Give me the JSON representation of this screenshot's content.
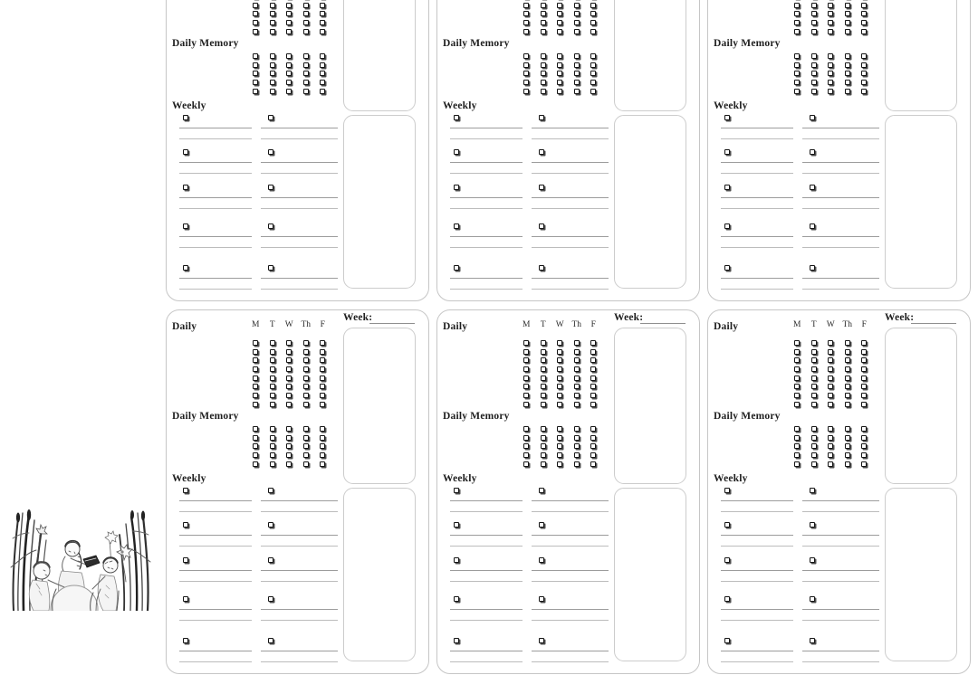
{
  "page": {
    "background_color": "#ffffff",
    "rows": 2,
    "cards_per_row": 3
  },
  "card": {
    "week_label": "Week:",
    "week_value": "",
    "daily_label": "Daily",
    "daily_memory_label": "Daily Memory",
    "weekly_label": "Weekly",
    "day_headers": [
      "M",
      "T",
      "W",
      "Th",
      "F"
    ],
    "daily_grid": {
      "rows": 8,
      "cols": 5
    },
    "memory_grid": {
      "rows": 5,
      "cols": 5
    },
    "weekly": {
      "columns": 2,
      "items_per_column": 5,
      "lines_per_item": 2
    },
    "notes_boxes": 2
  },
  "colors": {
    "text": "#1f1f1f",
    "card_border": "#c6c6c6",
    "notes_box_border": "#cccccc",
    "write_line_dark": "#9c9c9c",
    "write_line_light": "#bcbcbc",
    "checkbox_border": "#151515",
    "checkbox_shadow": "#4d4d4d"
  },
  "illustration": {
    "name": "children-reading-in-reeds",
    "description": "vintage black-and-white drawing of three children reading a book among tall reeds, cattails and daffodils"
  }
}
